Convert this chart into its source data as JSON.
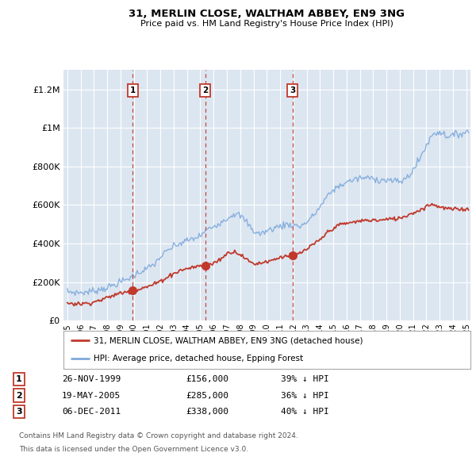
{
  "title": "31, MERLIN CLOSE, WALTHAM ABBEY, EN9 3NG",
  "subtitle": "Price paid vs. HM Land Registry's House Price Index (HPI)",
  "ylim": [
    0,
    1300000
  ],
  "xlim_start": 1994.7,
  "xlim_end": 2025.3,
  "yticks": [
    0,
    200000,
    400000,
    600000,
    800000,
    1000000,
    1200000
  ],
  "ytick_labels": [
    "£0",
    "£200K",
    "£400K",
    "£600K",
    "£800K",
    "£1M",
    "£1.2M"
  ],
  "transactions": [
    {
      "num": 1,
      "date": "26-NOV-1999",
      "price": 156000,
      "hpi_rel": "39% ↓ HPI",
      "year": 1999.92
    },
    {
      "num": 2,
      "date": "19-MAY-2005",
      "price": 285000,
      "hpi_rel": "36% ↓ HPI",
      "year": 2005.38
    },
    {
      "num": 3,
      "date": "06-DEC-2011",
      "price": 338000,
      "hpi_rel": "40% ↓ HPI",
      "year": 2011.93
    }
  ],
  "legend_line1": "31, MERLIN CLOSE, WALTHAM ABBEY, EN9 3NG (detached house)",
  "legend_line2": "HPI: Average price, detached house, Epping Forest",
  "footnote1": "Contains HM Land Registry data © Crown copyright and database right 2024.",
  "footnote2": "This data is licensed under the Open Government Licence v3.0.",
  "line_color_red": "#c0392b",
  "line_color_blue": "#7faadc",
  "bg_color": "#dce6f1",
  "grid_color": "#ffffff",
  "marker_box_color": "#c0392b",
  "hpi_anchors_years": [
    1995.0,
    1995.5,
    1996.0,
    1996.5,
    1997.0,
    1997.5,
    1998.0,
    1998.5,
    1999.0,
    1999.5,
    2000.0,
    2000.5,
    2001.0,
    2001.5,
    2002.0,
    2002.5,
    2003.0,
    2003.5,
    2004.0,
    2004.5,
    2005.0,
    2005.5,
    2006.0,
    2006.5,
    2007.0,
    2007.5,
    2008.0,
    2008.5,
    2009.0,
    2009.5,
    2010.0,
    2010.5,
    2011.0,
    2011.5,
    2012.0,
    2012.5,
    2013.0,
    2013.5,
    2014.0,
    2014.5,
    2015.0,
    2015.5,
    2016.0,
    2016.5,
    2017.0,
    2017.5,
    2018.0,
    2018.5,
    2019.0,
    2019.5,
    2020.0,
    2020.5,
    2021.0,
    2021.5,
    2022.0,
    2022.5,
    2023.0,
    2023.5,
    2024.0,
    2024.5,
    2025.0
  ],
  "hpi_anchors_vals": [
    150000,
    147000,
    145000,
    148000,
    155000,
    163000,
    172000,
    185000,
    200000,
    215000,
    235000,
    255000,
    270000,
    290000,
    330000,
    360000,
    385000,
    400000,
    415000,
    425000,
    440000,
    470000,
    490000,
    510000,
    530000,
    555000,
    545000,
    510000,
    465000,
    450000,
    465000,
    480000,
    490000,
    500000,
    495000,
    490000,
    510000,
    545000,
    590000,
    640000,
    680000,
    700000,
    720000,
    730000,
    740000,
    740000,
    740000,
    730000,
    730000,
    725000,
    720000,
    740000,
    780000,
    840000,
    910000,
    970000,
    980000,
    960000,
    960000,
    970000,
    980000
  ],
  "red_anchors_years": [
    1995.0,
    1995.5,
    1996.0,
    1996.5,
    1997.0,
    1997.5,
    1998.0,
    1998.5,
    1999.0,
    1999.5,
    1999.92,
    2000.2,
    2000.5,
    2001.0,
    2001.5,
    2002.0,
    2002.5,
    2003.0,
    2003.5,
    2004.0,
    2004.5,
    2005.0,
    2005.38,
    2005.7,
    2006.0,
    2006.5,
    2007.0,
    2007.5,
    2008.0,
    2008.5,
    2009.0,
    2009.5,
    2010.0,
    2010.5,
    2011.0,
    2011.5,
    2011.93,
    2012.2,
    2012.5,
    2013.0,
    2013.5,
    2014.0,
    2014.5,
    2015.0,
    2015.5,
    2016.0,
    2016.5,
    2017.0,
    2017.5,
    2018.0,
    2018.5,
    2019.0,
    2019.5,
    2020.0,
    2020.5,
    2021.0,
    2021.5,
    2022.0,
    2022.5,
    2023.0,
    2023.5,
    2024.0,
    2024.5,
    2025.0
  ],
  "red_anchors_vals": [
    92000,
    88000,
    87000,
    90000,
    97000,
    107000,
    118000,
    132000,
    143000,
    150000,
    156000,
    158000,
    165000,
    175000,
    188000,
    205000,
    225000,
    245000,
    260000,
    270000,
    278000,
    283000,
    285000,
    290000,
    298000,
    318000,
    348000,
    360000,
    345000,
    315000,
    295000,
    298000,
    308000,
    315000,
    330000,
    336000,
    338000,
    342000,
    350000,
    370000,
    395000,
    418000,
    455000,
    480000,
    498000,
    505000,
    510000,
    518000,
    520000,
    522000,
    520000,
    525000,
    528000,
    532000,
    545000,
    560000,
    572000,
    595000,
    605000,
    590000,
    582000,
    578000,
    578000,
    580000
  ]
}
